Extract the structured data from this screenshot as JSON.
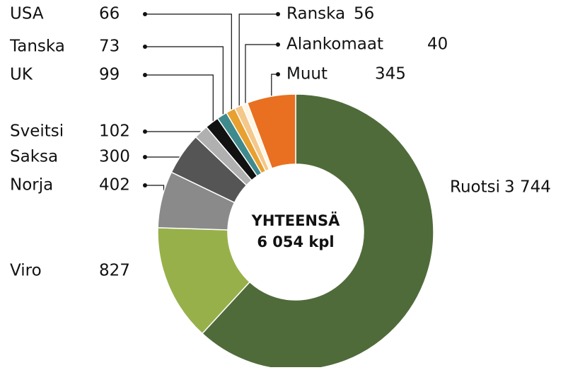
{
  "chart_data": {
    "type": "donut",
    "categories": [
      "Ruotsi",
      "Viro",
      "Norja",
      "Saksa",
      "Sveitsi",
      "UK",
      "Tanska",
      "USA",
      "Ranska",
      "Alankomaat",
      "Muut"
    ],
    "values": [
      3744,
      827,
      402,
      300,
      102,
      99,
      73,
      66,
      56,
      40,
      345
    ],
    "value_labels": [
      "3 744",
      "827",
      "402",
      "300",
      "102",
      "99",
      "73",
      "66",
      "56",
      "40",
      "345"
    ],
    "colors": [
      "#4f6b3a",
      "#97b04a",
      "#8a8a8a",
      "#555555",
      "#b0b0b0",
      "#111111",
      "#3f8a8c",
      "#e8a030",
      "#f3c88a",
      "#fff6e4",
      "#e87020"
    ],
    "center_label": [
      "YHTEENSÄ",
      "6 054 kpl"
    ]
  }
}
